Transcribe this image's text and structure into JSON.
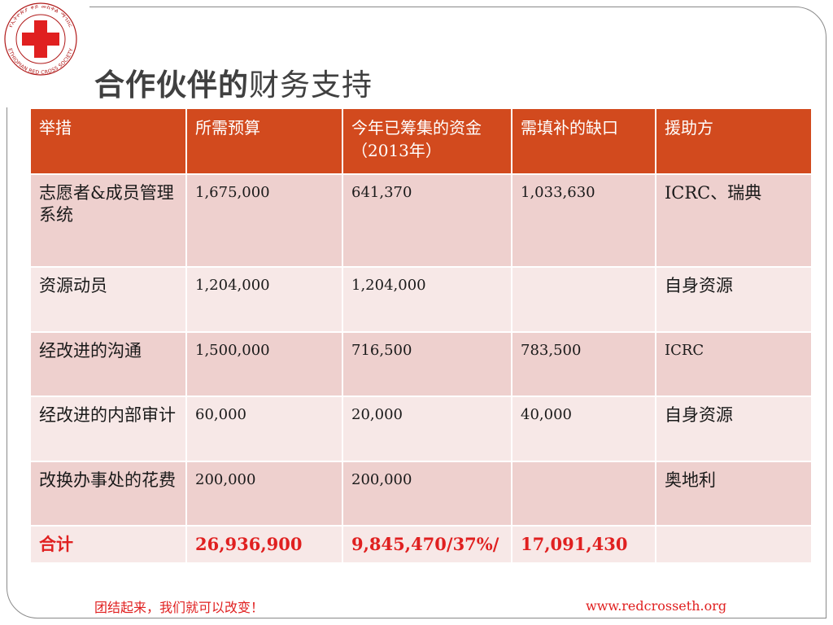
{
  "slide": {
    "title_bold": "合作伙伴的",
    "title_rest": "财务支持"
  },
  "logo": {
    "ring_text_top": "የኢትዮጵያ ቀይ መስቀል ማኅበር",
    "ring_text_bottom": "ETHIOPIAN RED CROSS SOCIETY",
    "cross_color": "#e02020"
  },
  "table": {
    "headers": [
      "举措",
      "所需预算",
      "今年已筹集的资金（2013年）",
      "需填补的缺口",
      "援助方"
    ],
    "rows": [
      [
        "志愿者&成员管理系统",
        "1,675,000",
        "641,370",
        "1,033,630",
        "ICRC、瑞典"
      ],
      [
        "资源动员",
        "1,204,000",
        "1,204,000",
        "",
        "自身资源"
      ],
      [
        "经改进的沟通",
        "1,500,000",
        "716,500",
        "783,500",
        "ICRC"
      ],
      [
        "经改进的内部审计",
        "60,000",
        "20,000",
        "40,000",
        "自身资源"
      ],
      [
        "改换办事处的花费",
        "200,000",
        "200,000",
        "",
        "奥地利"
      ]
    ],
    "total": [
      "合计",
      "26,936,900",
      "9,845,470/37%/",
      "17,091,430",
      ""
    ]
  },
  "footer": {
    "slogan": "团结起来，我们就可以改变！",
    "url": "www.redcrosseth.org"
  },
  "colors": {
    "header_bg": "#d24a1e",
    "row_dark": "#eed0ce",
    "row_light": "#f7e8e7",
    "accent_red": "#e02020",
    "title_gray": "#404040"
  }
}
